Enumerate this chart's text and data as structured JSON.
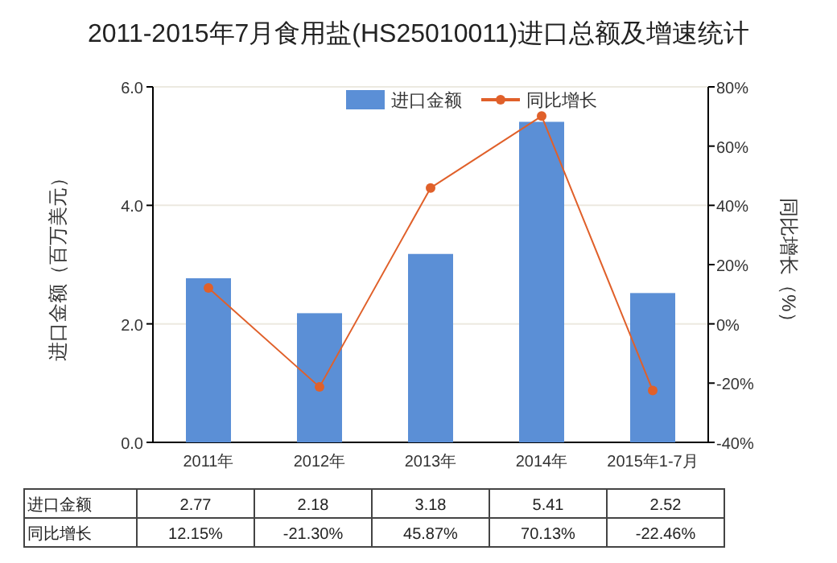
{
  "chart_data": {
    "type": "bar",
    "title": "2011-2015年7月食用盐(HS25010011)进口总额及增速统计",
    "ylabel": "进口金额（百万美元）",
    "y2label": "同比增长（%）",
    "categories": [
      "2011年",
      "2012年",
      "2013年",
      "2014年",
      "2015年1-7月"
    ],
    "series": [
      {
        "name": "进口金额",
        "color": "#5b8fd6",
        "values": [
          2.77,
          2.18,
          3.18,
          5.41,
          2.52
        ],
        "value_labels": [
          "2.77",
          "2.18",
          "3.18",
          "5.41",
          "2.52"
        ]
      },
      {
        "name": "同比增长",
        "type": "line",
        "axis": "y2",
        "color": "#e0602a",
        "marker": "circle",
        "values": [
          12.15,
          -21.3,
          45.87,
          70.13,
          -22.46
        ],
        "value_labels": [
          "12.15%",
          "-21.30%",
          "45.87%",
          "70.13%",
          "-22.46%"
        ]
      }
    ],
    "ylim": [
      0,
      6
    ],
    "yticks": [
      {
        "value": 0,
        "label": "0.0"
      },
      {
        "value": 2,
        "label": "2.0"
      },
      {
        "value": 4,
        "label": "4.0"
      },
      {
        "value": 6,
        "label": "6.0"
      }
    ],
    "y2lim": [
      -40,
      80
    ],
    "y2ticks": [
      {
        "value": -40,
        "label": "-40%"
      },
      {
        "value": -20,
        "label": "-20%"
      },
      {
        "value": 0,
        "label": "0%"
      },
      {
        "value": 20,
        "label": "20%"
      },
      {
        "value": 40,
        "label": "40%"
      },
      {
        "value": 60,
        "label": "60%"
      },
      {
        "value": 80,
        "label": "80%"
      }
    ],
    "grid": "y",
    "legend": "top right"
  }
}
